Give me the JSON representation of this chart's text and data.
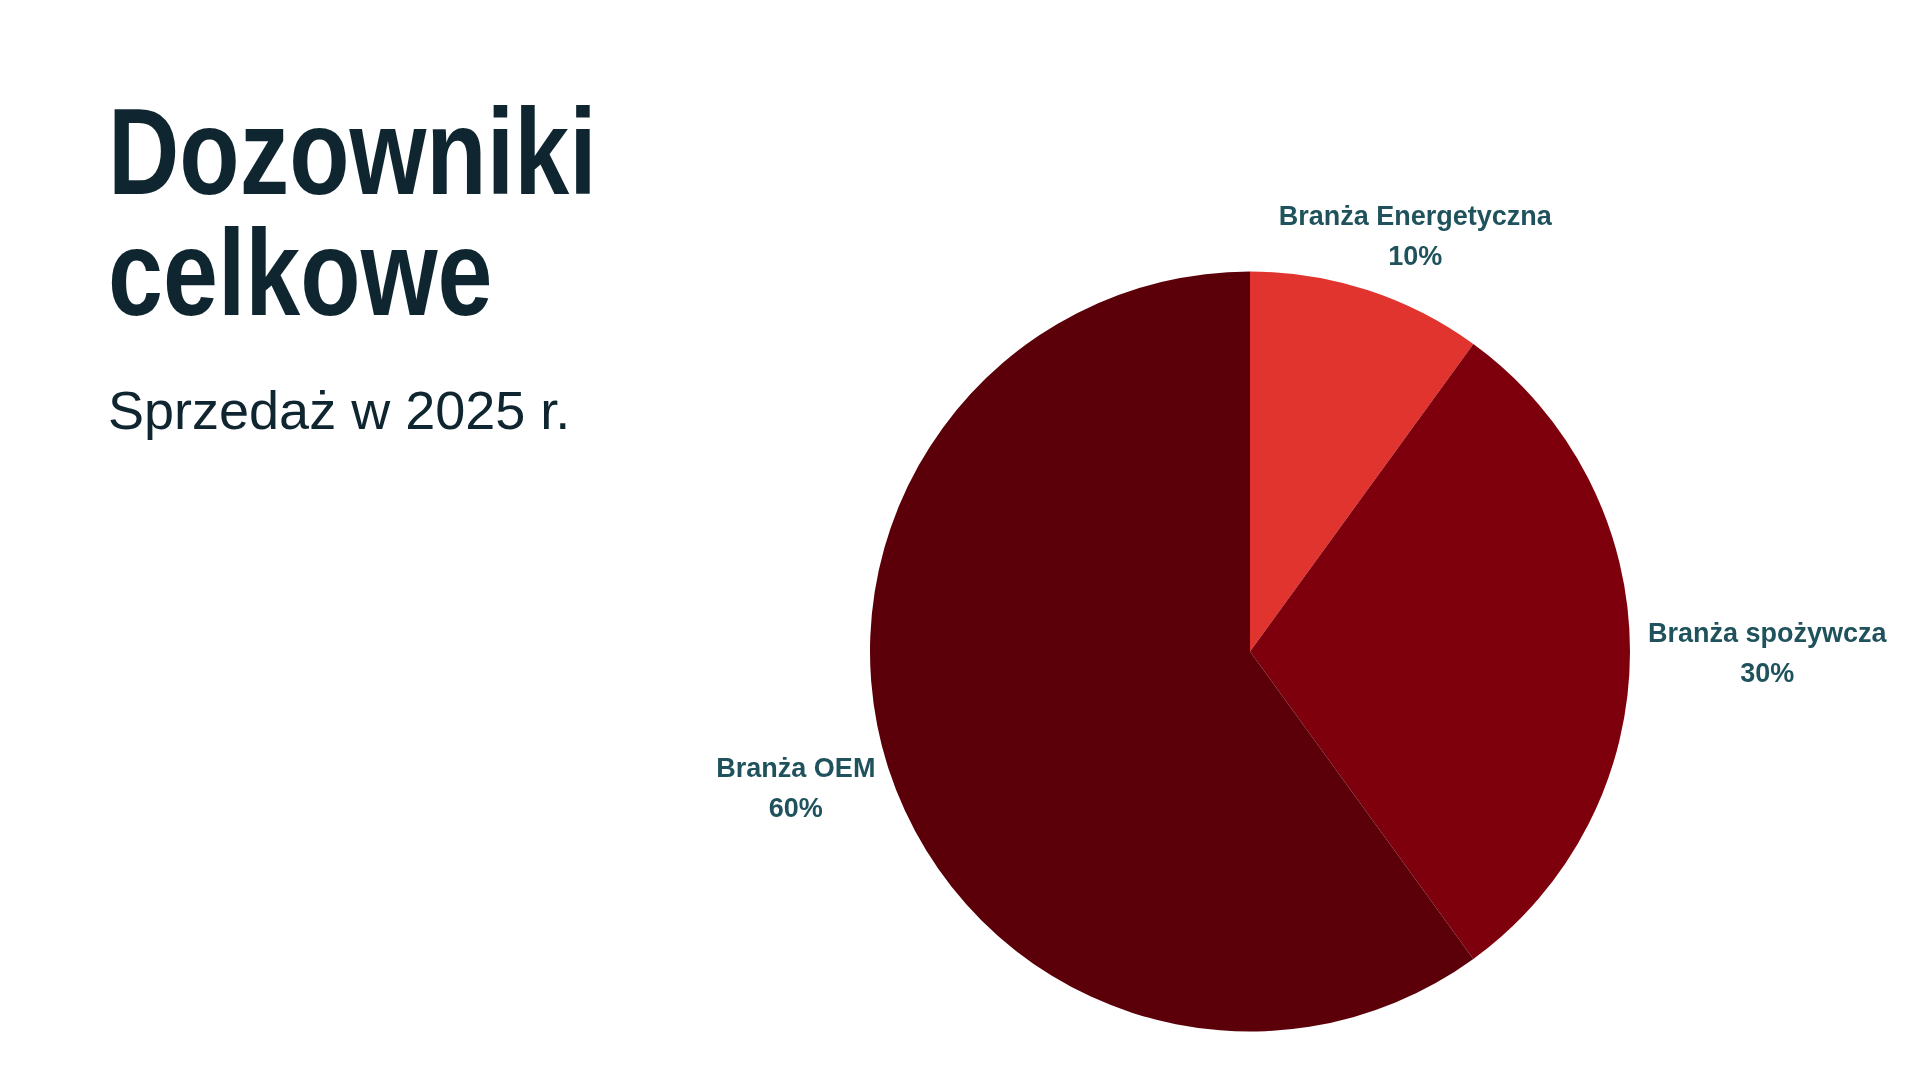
{
  "chart_data": {
    "type": "pie",
    "title": "Dozowniki celkowe",
    "subtitle": "Sprzedaż w 2025 r.",
    "categories": [
      "Branża Energetyczna",
      "Branża spożywcza",
      "Branża OEM"
    ],
    "values": [
      10,
      30,
      60
    ],
    "colors": [
      "#e2342e",
      "#7d000c",
      "#5b0009"
    ],
    "value_labels": [
      "10%",
      "30%",
      "60%"
    ]
  }
}
